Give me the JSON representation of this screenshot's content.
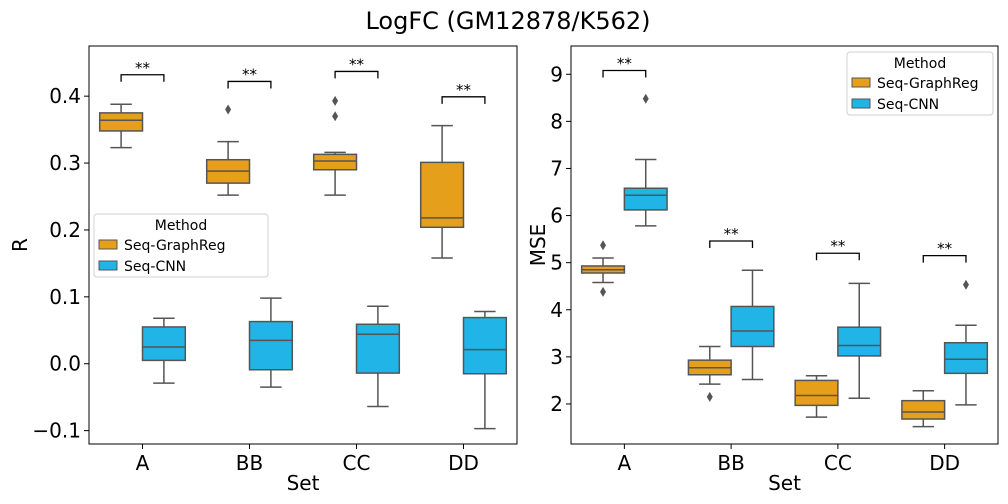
{
  "figure": {
    "suptitle": "LogFC (GM12878/K562)"
  },
  "colors": {
    "graphreg": "#E69F1B",
    "cnn": "#21B4E6",
    "edge": "#555555"
  },
  "chart_data": [
    {
      "type": "box",
      "xlabel": "Set",
      "ylabel": "R",
      "ylim": [
        -0.12,
        0.475
      ],
      "yticks": [
        -0.1,
        0.0,
        0.1,
        0.2,
        0.3,
        0.4
      ],
      "yticklabels": [
        "−0.1",
        "0.0",
        "0.1",
        "0.2",
        "0.3",
        "0.4"
      ],
      "categories": [
        "A",
        "BB",
        "CC",
        "DD"
      ],
      "legend": {
        "title": "Method",
        "position": "center-left"
      },
      "series": [
        {
          "name": "Seq-GraphReg",
          "color": "#E69F1B",
          "boxes": [
            {
              "min": 0.323,
              "q1": 0.348,
              "median": 0.364,
              "q3": 0.375,
              "max": 0.388,
              "outliers": []
            },
            {
              "min": 0.252,
              "q1": 0.27,
              "median": 0.288,
              "q3": 0.305,
              "max": 0.332,
              "outliers": [
                0.38
              ]
            },
            {
              "min": 0.252,
              "q1": 0.29,
              "median": 0.303,
              "q3": 0.313,
              "max": 0.316,
              "outliers": [
                0.393,
                0.37
              ]
            },
            {
              "min": 0.158,
              "q1": 0.204,
              "median": 0.218,
              "q3": 0.301,
              "max": 0.356,
              "outliers": []
            }
          ]
        },
        {
          "name": "Seq-CNN",
          "color": "#21B4E6",
          "boxes": [
            {
              "min": -0.029,
              "q1": 0.005,
              "median": 0.025,
              "q3": 0.055,
              "max": 0.068,
              "outliers": []
            },
            {
              "min": -0.035,
              "q1": -0.009,
              "median": 0.035,
              "q3": 0.063,
              "max": 0.098,
              "outliers": []
            },
            {
              "min": -0.064,
              "q1": -0.014,
              "median": 0.044,
              "q3": 0.059,
              "max": 0.086,
              "outliers": []
            },
            {
              "min": -0.097,
              "q1": -0.015,
              "median": 0.021,
              "q3": 0.069,
              "max": 0.078,
              "outliers": []
            }
          ]
        }
      ],
      "annotations": [
        {
          "category": "A",
          "text": "**",
          "y": 0.432
        },
        {
          "category": "BB",
          "text": "**",
          "y": 0.422
        },
        {
          "category": "CC",
          "text": "**",
          "y": 0.437
        },
        {
          "category": "DD",
          "text": "**",
          "y": 0.399
        }
      ]
    },
    {
      "type": "box",
      "xlabel": "Set",
      "ylabel": "MSE",
      "ylim": [
        1.15,
        9.6
      ],
      "yticks": [
        2,
        3,
        4,
        5,
        6,
        7,
        8,
        9
      ],
      "yticklabels": [
        "2",
        "3",
        "4",
        "5",
        "6",
        "7",
        "8",
        "9"
      ],
      "categories": [
        "A",
        "BB",
        "CC",
        "DD"
      ],
      "legend": {
        "title": "Method",
        "position": "top-right"
      },
      "series": [
        {
          "name": "Seq-GraphReg",
          "color": "#E69F1B",
          "boxes": [
            {
              "min": 4.58,
              "q1": 4.78,
              "median": 4.85,
              "q3": 4.93,
              "max": 5.1,
              "outliers": [
                5.37,
                4.38
              ]
            },
            {
              "min": 2.42,
              "q1": 2.62,
              "median": 2.77,
              "q3": 2.93,
              "max": 3.22,
              "outliers": [
                2.15
              ]
            },
            {
              "min": 1.72,
              "q1": 1.97,
              "median": 2.18,
              "q3": 2.5,
              "max": 2.6,
              "outliers": []
            },
            {
              "min": 1.52,
              "q1": 1.68,
              "median": 1.83,
              "q3": 2.07,
              "max": 2.28,
              "outliers": []
            }
          ]
        },
        {
          "name": "Seq-CNN",
          "color": "#21B4E6",
          "boxes": [
            {
              "min": 5.78,
              "q1": 6.12,
              "median": 6.43,
              "q3": 6.58,
              "max": 7.19,
              "outliers": [
                8.48
              ]
            },
            {
              "min": 2.52,
              "q1": 3.22,
              "median": 3.55,
              "q3": 4.07,
              "max": 4.84,
              "outliers": []
            },
            {
              "min": 2.12,
              "q1": 3.02,
              "median": 3.24,
              "q3": 3.63,
              "max": 4.56,
              "outliers": []
            },
            {
              "min": 1.98,
              "q1": 2.65,
              "median": 2.95,
              "q3": 3.3,
              "max": 3.67,
              "outliers": [
                4.53
              ]
            }
          ]
        }
      ],
      "annotations": [
        {
          "category": "A",
          "text": "**",
          "y": 9.08
        },
        {
          "category": "BB",
          "text": "**",
          "y": 5.46
        },
        {
          "category": "CC",
          "text": "**",
          "y": 5.2
        },
        {
          "category": "DD",
          "text": "**",
          "y": 5.15
        }
      ]
    }
  ]
}
